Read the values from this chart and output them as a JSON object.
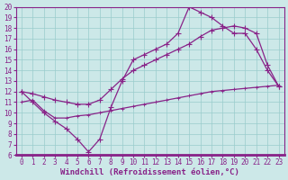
{
  "xlabel": "Windchill (Refroidissement éolien,°C)",
  "xlim": [
    -0.5,
    23.5
  ],
  "ylim": [
    6,
    20
  ],
  "xticks": [
    0,
    1,
    2,
    3,
    4,
    5,
    6,
    7,
    8,
    9,
    10,
    11,
    12,
    13,
    14,
    15,
    16,
    17,
    18,
    19,
    20,
    21,
    22,
    23
  ],
  "yticks": [
    6,
    7,
    8,
    9,
    10,
    11,
    12,
    13,
    14,
    15,
    16,
    17,
    18,
    19,
    20
  ],
  "bg_color": "#cce8e8",
  "line_color": "#882288",
  "grid_color": "#99cccc",
  "spine_color": "#882288",
  "line1_x": [
    0,
    1,
    2,
    3,
    4,
    5,
    6,
    7,
    8,
    9,
    10,
    11,
    12,
    13,
    14,
    15,
    16,
    17,
    18,
    19,
    20,
    21,
    22,
    23
  ],
  "line1_y": [
    12,
    11,
    10,
    9.2,
    8.5,
    7.5,
    6.3,
    7.5,
    10.5,
    13,
    15,
    15.5,
    16,
    16.5,
    17.5,
    20,
    19.5,
    19,
    18.2,
    17.5,
    17.5,
    16,
    14,
    12.5
  ],
  "line2_x": [
    0,
    1,
    2,
    3,
    4,
    5,
    6,
    7,
    8,
    9,
    10,
    11,
    12,
    13,
    14,
    15,
    16,
    17,
    18,
    19,
    20,
    21,
    22,
    23
  ],
  "line2_y": [
    12,
    11.8,
    11.5,
    11.2,
    11.0,
    10.8,
    10.8,
    11.2,
    12.2,
    13.2,
    14.0,
    14.5,
    15.0,
    15.5,
    16.0,
    16.5,
    17.2,
    17.8,
    18.0,
    18.2,
    18.0,
    17.5,
    14.5,
    12.5
  ],
  "line3_x": [
    0,
    1,
    2,
    3,
    4,
    5,
    6,
    7,
    8,
    9,
    10,
    11,
    12,
    13,
    14,
    15,
    16,
    17,
    18,
    19,
    20,
    21,
    22,
    23
  ],
  "line3_y": [
    11.0,
    11.2,
    10.2,
    9.5,
    9.5,
    9.7,
    9.8,
    10.0,
    10.2,
    10.4,
    10.6,
    10.8,
    11.0,
    11.2,
    11.4,
    11.6,
    11.8,
    12.0,
    12.1,
    12.2,
    12.3,
    12.4,
    12.5,
    12.6
  ],
  "marker": "+",
  "markersize": 4,
  "linewidth": 0.9,
  "font_size": 6.5,
  "tick_font_size": 5.5
}
